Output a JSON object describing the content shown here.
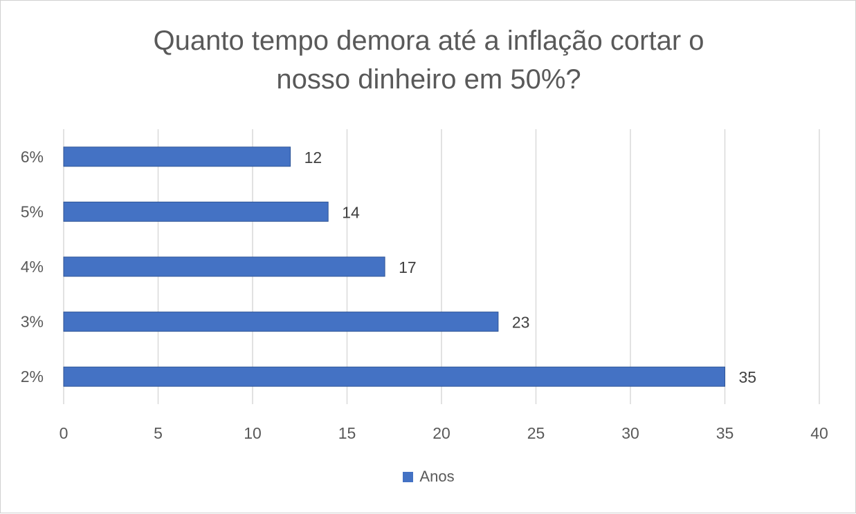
{
  "chart_data": {
    "type": "bar",
    "orientation": "horizontal",
    "title_lines": [
      "Quanto tempo demora até a inflação cortar o",
      "nosso dinheiro em 50%?"
    ],
    "categories": [
      "6%",
      "5%",
      "4%",
      "3%",
      "2%"
    ],
    "series": [
      {
        "name": "Anos",
        "values": [
          12,
          14,
          17,
          23,
          35
        ]
      }
    ],
    "data_labels": [
      "12",
      "14",
      "17",
      "23",
      "35"
    ],
    "xlim": [
      0,
      40
    ],
    "x_ticks": [
      0,
      5,
      10,
      15,
      20,
      25,
      30,
      35,
      40
    ],
    "xlabel": "",
    "ylabel": "",
    "grid": "vertical",
    "legend_position": "bottom",
    "colors": {
      "bar": "#4472c4",
      "grid": "#d9d9d9",
      "text": "#595959",
      "label": "#404040"
    }
  }
}
